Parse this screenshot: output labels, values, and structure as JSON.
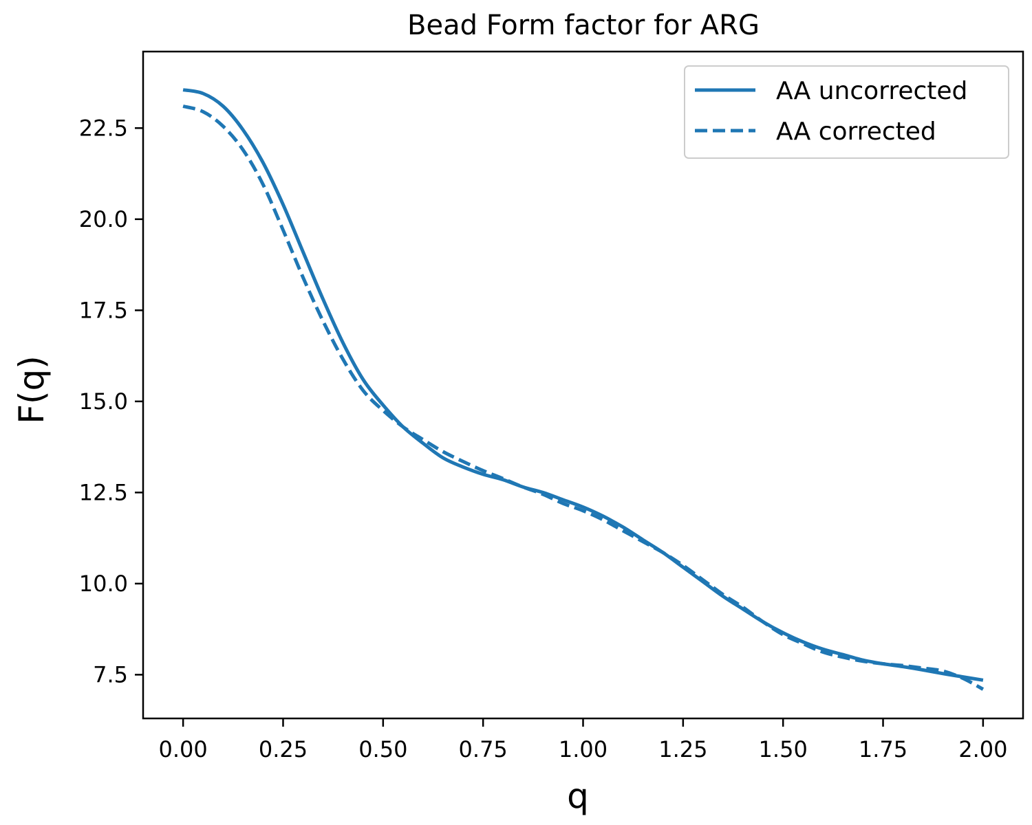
{
  "chart_data": {
    "type": "line",
    "title": "Bead Form factor for ARG",
    "xlabel": "q",
    "ylabel": "F(q)",
    "xlim": [
      -0.1,
      2.1
    ],
    "ylim": [
      6.3,
      24.6
    ],
    "xticks": [
      0.0,
      0.25,
      0.5,
      0.75,
      1.0,
      1.25,
      1.5,
      1.75,
      2.0
    ],
    "xtick_labels": [
      "0.00",
      "0.25",
      "0.50",
      "0.75",
      "1.00",
      "1.25",
      "1.50",
      "1.75",
      "2.00"
    ],
    "yticks": [
      7.5,
      10.0,
      12.5,
      15.0,
      17.5,
      20.0,
      22.5
    ],
    "ytick_labels": [
      "7.5",
      "10.0",
      "12.5",
      "15.0",
      "17.5",
      "20.0",
      "22.5"
    ],
    "grid": false,
    "legend_position": "top-right",
    "color": "#1f77b4",
    "x": [
      0.0,
      0.05,
      0.1,
      0.15,
      0.2,
      0.25,
      0.3,
      0.35,
      0.4,
      0.45,
      0.5,
      0.55,
      0.6,
      0.65,
      0.7,
      0.75,
      0.8,
      0.85,
      0.9,
      0.95,
      1.0,
      1.05,
      1.1,
      1.15,
      1.2,
      1.25,
      1.3,
      1.35,
      1.4,
      1.45,
      1.5,
      1.55,
      1.6,
      1.65,
      1.7,
      1.75,
      1.8,
      1.85,
      1.9,
      1.95,
      2.0
    ],
    "series": [
      {
        "name": "AA uncorrected",
        "style": "solid",
        "values": [
          23.55,
          23.45,
          23.1,
          22.45,
          21.55,
          20.4,
          19.1,
          17.8,
          16.6,
          15.6,
          14.9,
          14.3,
          13.85,
          13.45,
          13.2,
          13.0,
          12.85,
          12.65,
          12.5,
          12.3,
          12.1,
          11.85,
          11.55,
          11.2,
          10.85,
          10.45,
          10.05,
          9.65,
          9.3,
          8.95,
          8.65,
          8.4,
          8.2,
          8.05,
          7.9,
          7.8,
          7.72,
          7.63,
          7.53,
          7.44,
          7.35
        ]
      },
      {
        "name": "AA corrected",
        "style": "dashed",
        "values": [
          23.1,
          22.95,
          22.55,
          21.9,
          20.95,
          19.7,
          18.4,
          17.2,
          16.15,
          15.3,
          14.75,
          14.3,
          13.95,
          13.62,
          13.35,
          13.1,
          12.88,
          12.65,
          12.45,
          12.2,
          12.0,
          11.75,
          11.45,
          11.15,
          10.85,
          10.5,
          10.1,
          9.7,
          9.35,
          8.95,
          8.6,
          8.35,
          8.12,
          7.98,
          7.87,
          7.8,
          7.75,
          7.68,
          7.6,
          7.4,
          7.1
        ]
      }
    ]
  }
}
